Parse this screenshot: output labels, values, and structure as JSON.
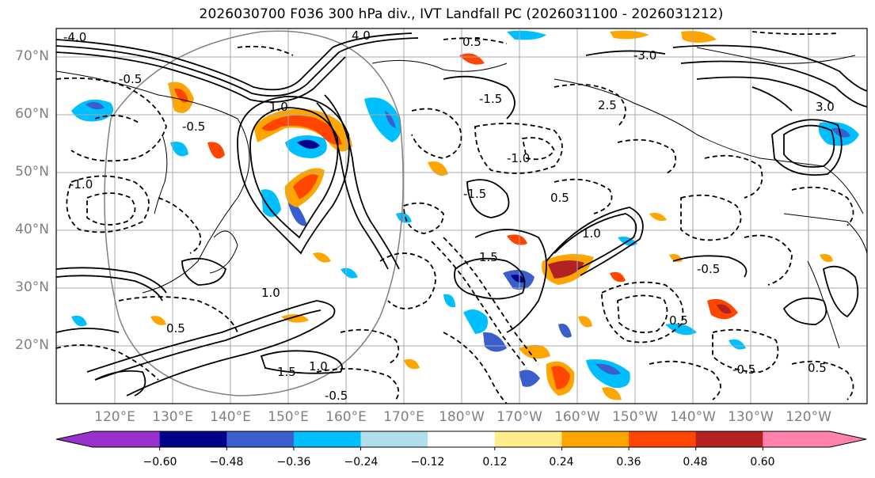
{
  "title": "2026030700 F036 300 hPa div., IVT Landfall PC (2026031100 - 2026031212)",
  "lat_labels": [
    "70°N",
    "60°N",
    "50°N",
    "40°N",
    "30°N",
    "20°N"
  ],
  "lon_labels": [
    "120°E",
    "130°E",
    "140°E",
    "150°E",
    "160°E",
    "170°E",
    "180°W",
    "170°W",
    "160°W",
    "150°W",
    "140°W",
    "130°W",
    "120°W"
  ],
  "colorbar": {
    "ticks": [
      "−0.60",
      "−0.48",
      "−0.36",
      "−0.24",
      "−0.12",
      "0.12",
      "0.24",
      "0.36",
      "0.48",
      "0.60"
    ],
    "colors": [
      "#9932cc",
      "#00008b",
      "#3a5fcd",
      "#00bfff",
      "#b2dfee",
      "#ffffff",
      "#ffec8b",
      "#ffa500",
      "#ff4500",
      "#b22222",
      "#ff82ab"
    ]
  },
  "contour_labels": [
    "-4.0",
    "4.0",
    "0.5",
    "-0.5",
    "1.0",
    "-1.0",
    "1.5",
    "-1.5",
    "2.5",
    "3.0",
    "-3.0",
    "-0.5",
    "0.5",
    "-1.0",
    "1.0",
    "-0.5",
    "0.5",
    "1.5",
    "-1.5",
    "1.0",
    "-0.5",
    "1.0",
    "0.5",
    "-0.5",
    "0.5"
  ]
}
